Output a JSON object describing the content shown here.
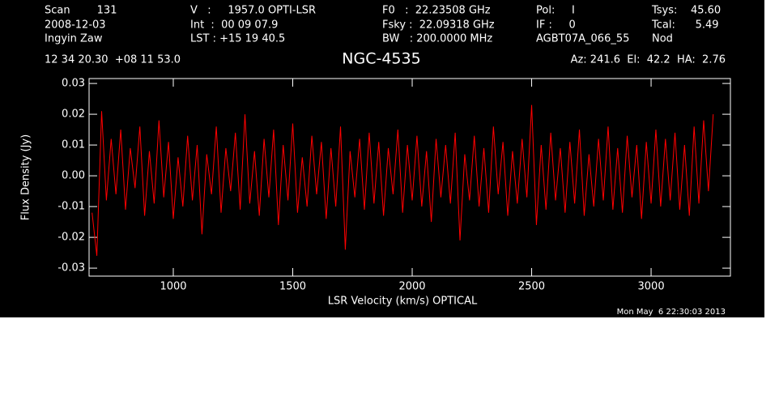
{
  "header": {
    "rows": [
      [
        "Scan        131",
        "V   :     1957.0 OPTI-LSR",
        "F0   :  22.23508 GHz",
        "Pol:     I",
        "Tsys:    45.60"
      ],
      [
        "2008-12-03",
        "Int  :  00 09 07.9",
        "Fsky :  22.09318 GHz",
        "IF :     0",
        "Tcal:      5.49"
      ],
      [
        "Ingyin Zaw",
        "LST : +15 19 40.5",
        "BW   : 200.0000 MHz",
        "AGBT07A_066_55",
        "Nod"
      ]
    ],
    "position": "12 34 20.30  +08 11 53.0",
    "pointing": "Az: 241.6  El:  42.2  HA:  2.76",
    "timestamp": "Mon May  6 22:30:03 2013"
  },
  "chart_data": {
    "type": "line",
    "title": "NGC-4535",
    "x_label": "LSR Velocity (km/s) OPTICAL",
    "y_label": "Flux Density (Jy)",
    "x": [
      660,
      680,
      700,
      720,
      740,
      760,
      780,
      800,
      820,
      840,
      860,
      880,
      900,
      920,
      940,
      960,
      980,
      1000,
      1020,
      1040,
      1060,
      1080,
      1100,
      1120,
      1140,
      1160,
      1180,
      1200,
      1220,
      1240,
      1260,
      1280,
      1300,
      1320,
      1340,
      1360,
      1380,
      1400,
      1420,
      1440,
      1460,
      1480,
      1500,
      1520,
      1540,
      1560,
      1580,
      1600,
      1620,
      1640,
      1660,
      1680,
      1700,
      1720,
      1740,
      1760,
      1780,
      1800,
      1820,
      1840,
      1860,
      1880,
      1900,
      1920,
      1940,
      1960,
      1980,
      2000,
      2020,
      2040,
      2060,
      2080,
      2100,
      2120,
      2140,
      2160,
      2180,
      2200,
      2220,
      2240,
      2260,
      2280,
      2300,
      2320,
      2340,
      2360,
      2380,
      2400,
      2420,
      2440,
      2460,
      2480,
      2500,
      2520,
      2540,
      2560,
      2580,
      2600,
      2620,
      2640,
      2660,
      2680,
      2700,
      2720,
      2740,
      2760,
      2780,
      2800,
      2820,
      2840,
      2860,
      2880,
      2900,
      2920,
      2940,
      2960,
      2980,
      3000,
      3020,
      3040,
      3060,
      3080,
      3100,
      3120,
      3140,
      3160,
      3180,
      3200,
      3220,
      3240,
      3260
    ],
    "series": [
      {
        "name": "NGC-4535",
        "color": "#ff0000",
        "values": [
          -0.012,
          -0.026,
          0.021,
          -0.008,
          0.012,
          -0.006,
          0.015,
          -0.011,
          0.009,
          -0.004,
          0.016,
          -0.013,
          0.008,
          -0.009,
          0.018,
          -0.007,
          0.011,
          -0.014,
          0.006,
          -0.01,
          0.013,
          -0.008,
          0.01,
          -0.019,
          0.007,
          -0.006,
          0.016,
          -0.012,
          0.009,
          -0.005,
          0.014,
          -0.011,
          0.02,
          -0.009,
          0.008,
          -0.013,
          0.012,
          -0.007,
          0.015,
          -0.016,
          0.01,
          -0.008,
          0.017,
          -0.012,
          0.006,
          -0.01,
          0.013,
          -0.006,
          0.011,
          -0.014,
          0.009,
          -0.01,
          0.016,
          -0.024,
          0.008,
          -0.007,
          0.012,
          -0.011,
          0.014,
          -0.009,
          0.011,
          -0.013,
          0.009,
          -0.006,
          0.015,
          -0.012,
          0.01,
          -0.008,
          0.013,
          -0.01,
          0.008,
          -0.015,
          0.012,
          -0.007,
          0.01,
          -0.009,
          0.014,
          -0.021,
          0.007,
          -0.008,
          0.013,
          -0.01,
          0.009,
          -0.012,
          0.016,
          -0.006,
          0.011,
          -0.013,
          0.008,
          -0.009,
          0.012,
          -0.007,
          0.023,
          -0.016,
          0.01,
          -0.011,
          0.014,
          -0.008,
          0.009,
          -0.012,
          0.011,
          -0.009,
          0.015,
          -0.013,
          0.007,
          -0.01,
          0.012,
          -0.008,
          0.016,
          -0.011,
          0.009,
          -0.012,
          0.013,
          -0.007,
          0.01,
          -0.014,
          0.011,
          -0.009,
          0.015,
          -0.01,
          0.012,
          -0.008,
          0.014,
          -0.011,
          0.01,
          -0.013,
          0.016,
          -0.009,
          0.018,
          -0.005,
          0.02
        ]
      }
    ],
    "xlim": [
      647.5,
      3332
    ],
    "ylim": [
      -0.0326,
      0.0316
    ],
    "xticks": [
      1000,
      1500,
      2000,
      2500,
      3000
    ],
    "yticks": [
      -0.03,
      -0.02,
      -0.01,
      {
        "value": 0,
        "label": "0.00"
      },
      0.01,
      0.02,
      0.03
    ],
    "grid": false
  }
}
